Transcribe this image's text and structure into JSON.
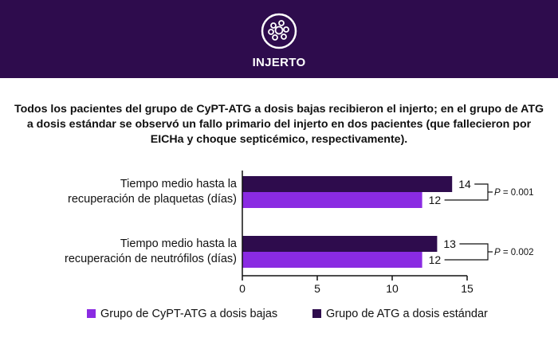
{
  "header": {
    "title": "INJERTO",
    "icon": "cells-icon",
    "background_color": "#2e0c4d"
  },
  "summary_text": "Todos los pacientes del grupo de CyPT-ATG a dosis bajas recibieron el injerto; en el grupo de ATG a dosis estándar se observó un fallo primario del injerto en dos pacientes (que fallecieron por EICHa y choque septicémico, respectivamente).",
  "chart_data": {
    "type": "bar",
    "orientation": "horizontal",
    "categories": [
      [
        "Tiempo medio hasta la",
        "recuperación de plaquetas (días)"
      ],
      [
        "Tiempo medio hasta la",
        "recuperación de neutrófilos (días)"
      ]
    ],
    "series": [
      {
        "name": "Grupo de ATG a dosis estándar",
        "color": "#2e0c4d",
        "values": [
          14,
          13
        ]
      },
      {
        "name": "Grupo de CyPT-ATG a dosis bajas",
        "color": "#8a2be2",
        "values": [
          12,
          12
        ]
      }
    ],
    "xlim": [
      0,
      15
    ],
    "xticks": [
      0,
      5,
      10,
      15
    ],
    "p_values": [
      {
        "italic": "P",
        "rest": " = 0.001"
      },
      {
        "italic": "P",
        "rest": " = 0.002"
      }
    ],
    "legend": {
      "placement": "bottom",
      "order": [
        "Grupo de CyPT-ATG a dosis bajas",
        "Grupo de ATG a dosis estándar"
      ]
    },
    "grid": false
  }
}
